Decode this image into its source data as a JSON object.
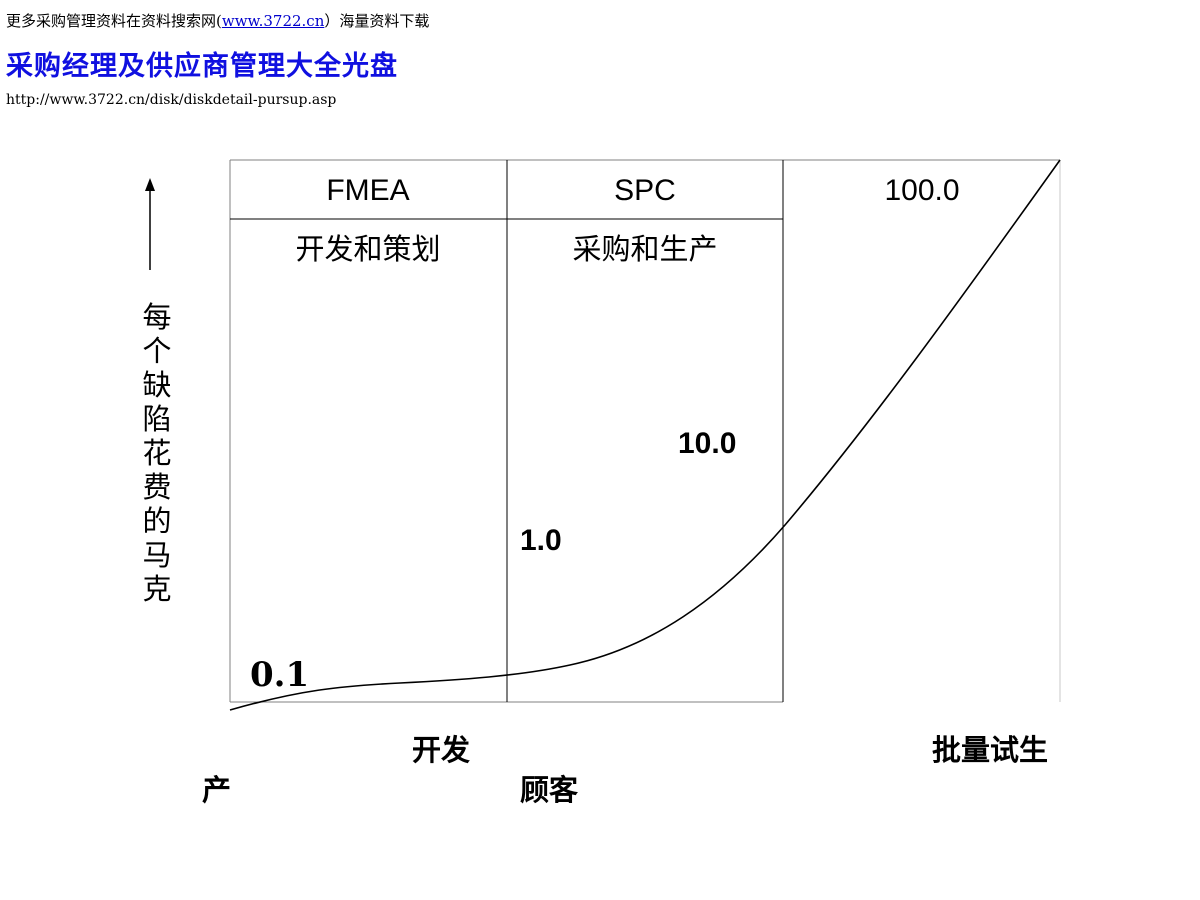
{
  "header": {
    "note_prefix": "更多采购管理资料在资料搜索网(",
    "note_link": "www.3722.cn",
    "note_suffix": "）海量资料下载",
    "title": "采购经理及供应商管理大全光盘",
    "url": "http://www.3722.cn/disk/diskdetail-pursup.asp"
  },
  "diagram": {
    "columns": [
      {
        "header": "FMEA",
        "subtitle": "开发和策划"
      },
      {
        "header": "SPC",
        "subtitle": "采购和生产"
      },
      {
        "header": "100.0",
        "subtitle": ""
      }
    ],
    "y_axis_label": "每个缺陷花费的马克",
    "value_labels": [
      "0.1",
      "1.0",
      "10.0"
    ],
    "bottom_labels": {
      "kaifa": "开发",
      "piliang": "批量试生",
      "chan": "产",
      "guke": "顾客"
    },
    "colors": {
      "line": "#000000",
      "title": "#1010e0",
      "link": "#0000cc"
    }
  }
}
